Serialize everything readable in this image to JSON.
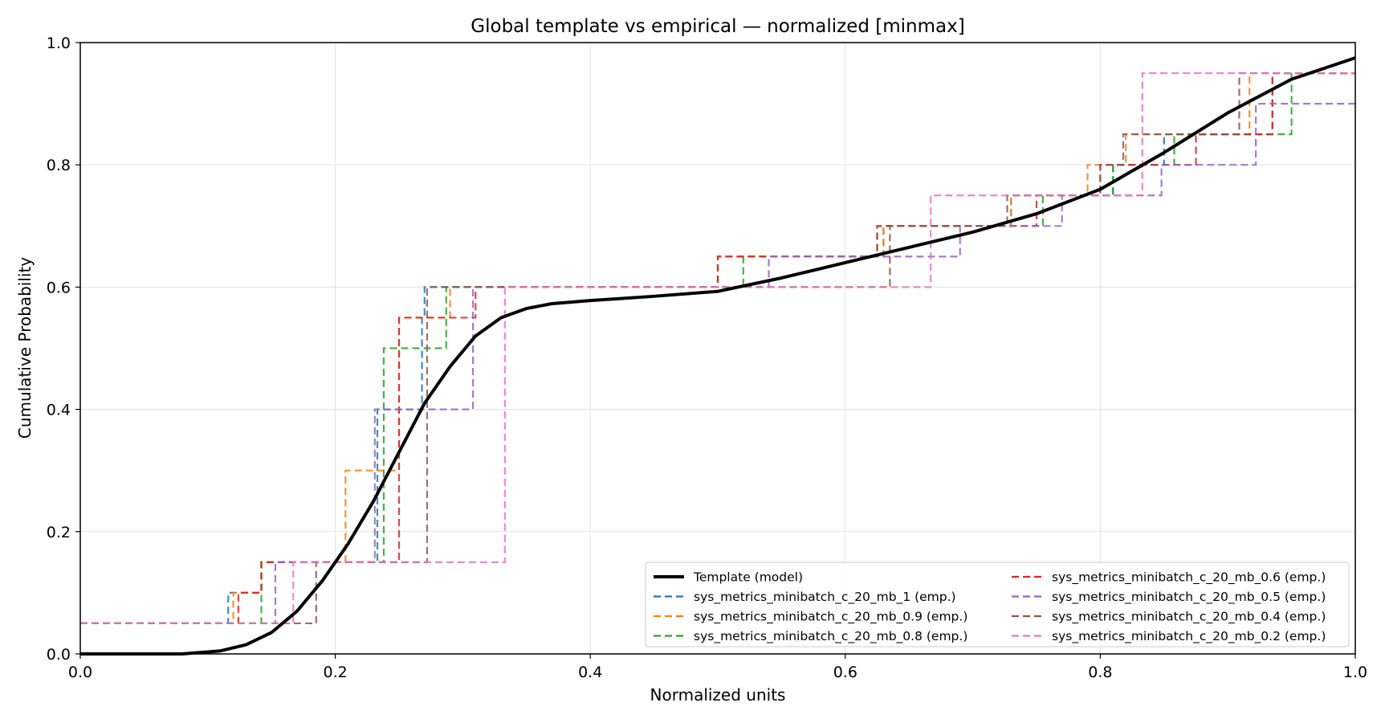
{
  "chart_data": {
    "type": "line",
    "title": "Global template vs empirical — normalized [minmax]",
    "xlabel": "Normalized units",
    "ylabel": "Cumulative Probability",
    "xlim": [
      0,
      1
    ],
    "ylim": [
      0,
      1
    ],
    "xticks": [
      "0.0",
      "0.2",
      "0.4",
      "0.6",
      "0.8",
      "1.0"
    ],
    "yticks": [
      "0.0",
      "0.2",
      "0.4",
      "0.6",
      "0.8",
      "1.0"
    ],
    "grid": true,
    "legend_position": "lower-right",
    "template": {
      "name": "Template (model)",
      "color": "#000000",
      "x": [
        0.0,
        0.08,
        0.11,
        0.13,
        0.15,
        0.17,
        0.19,
        0.21,
        0.23,
        0.25,
        0.27,
        0.29,
        0.31,
        0.33,
        0.35,
        0.37,
        0.4,
        0.45,
        0.5,
        0.55,
        0.6,
        0.65,
        0.7,
        0.75,
        0.8,
        0.85,
        0.9,
        0.95,
        1.0
      ],
      "y": [
        0.0,
        0.0,
        0.005,
        0.015,
        0.035,
        0.07,
        0.12,
        0.18,
        0.25,
        0.33,
        0.41,
        0.47,
        0.52,
        0.55,
        0.565,
        0.573,
        0.578,
        0.585,
        0.593,
        0.615,
        0.64,
        0.665,
        0.69,
        0.72,
        0.76,
        0.82,
        0.885,
        0.94,
        0.975
      ]
    },
    "series": [
      {
        "name": "sys_metrics_minibatch_c_20_mb_1 (emp.)",
        "color": "#1f77b4",
        "x": [
          0.116,
          0.142,
          0.153,
          0.18,
          0.233,
          0.268,
          0.27,
          0.5,
          0.63,
          0.655,
          0.73,
          0.765,
          0.81,
          0.82,
          0.85,
          0.91,
          0.935,
          0.96
        ],
        "y": [
          0.1,
          0.15,
          0.15,
          0.15,
          0.4,
          0.55,
          0.6,
          0.65,
          0.7,
          0.7,
          0.75,
          0.75,
          0.8,
          0.8,
          0.85,
          0.85,
          0.95,
          0.95
        ]
      },
      {
        "name": "sys_metrics_minibatch_c_20_mb_0.9 (emp.)",
        "color": "#ff7f0e",
        "x": [
          0.12,
          0.142,
          0.153,
          0.17,
          0.208,
          0.24,
          0.25,
          0.29,
          0.5,
          0.63,
          0.655,
          0.73,
          0.79,
          0.81,
          0.82,
          0.85,
          0.917,
          0.94
        ],
        "y": [
          0.1,
          0.15,
          0.15,
          0.15,
          0.3,
          0.3,
          0.55,
          0.6,
          0.65,
          0.7,
          0.7,
          0.75,
          0.8,
          0.8,
          0.85,
          0.85,
          0.95,
          0.95
        ]
      },
      {
        "name": "sys_metrics_minibatch_c_20_mb_0.8 (emp.)",
        "color": "#2ca02c",
        "x": [
          0.142,
          0.15,
          0.16,
          0.18,
          0.238,
          0.248,
          0.287,
          0.52,
          0.625,
          0.66,
          0.755,
          0.765,
          0.81,
          0.82,
          0.858,
          0.92,
          0.95,
          0.953
        ],
        "y": [
          0.15,
          0.15,
          0.15,
          0.15,
          0.5,
          0.5,
          0.6,
          0.65,
          0.7,
          0.7,
          0.75,
          0.75,
          0.8,
          0.8,
          0.85,
          0.85,
          0.95,
          0.95
        ]
      },
      {
        "name": "sys_metrics_minibatch_c_20_mb_0.6 (emp.)",
        "color": "#d62728",
        "x": [
          0.124,
          0.142,
          0.153,
          0.186,
          0.25,
          0.25,
          0.31,
          0.5,
          0.625,
          0.66,
          0.75,
          0.76,
          0.8,
          0.82,
          0.875,
          0.92,
          0.935,
          0.94
        ],
        "y": [
          0.1,
          0.15,
          0.15,
          0.15,
          0.3,
          0.55,
          0.6,
          0.65,
          0.7,
          0.7,
          0.75,
          0.75,
          0.8,
          0.8,
          0.85,
          0.85,
          0.95,
          0.95
        ]
      },
      {
        "name": "sys_metrics_minibatch_c_20_mb_0.5 (emp.)",
        "color": "#9467bd",
        "x": [
          0.153,
          0.16,
          0.17,
          0.18,
          0.231,
          0.308,
          0.308,
          0.54,
          0.63,
          0.69,
          0.75,
          0.77,
          0.8,
          0.848,
          0.92,
          0.922,
          0.93,
          1.0
        ],
        "y": [
          0.15,
          0.15,
          0.15,
          0.15,
          0.4,
          0.5,
          0.6,
          0.65,
          0.65,
          0.7,
          0.7,
          0.75,
          0.75,
          0.8,
          0.8,
          0.9,
          0.9,
          0.9
        ]
      },
      {
        "name": "sys_metrics_minibatch_c_20_mb_0.4 (emp.)",
        "color": "#8c564b",
        "x": [
          0.182,
          0.185,
          0.19,
          0.2,
          0.272,
          0.272,
          0.275,
          0.545,
          0.635,
          0.66,
          0.727,
          0.77,
          0.8,
          0.818,
          0.82,
          0.909,
          0.91,
          0.94
        ],
        "y": [
          0.05,
          0.15,
          0.15,
          0.15,
          0.15,
          0.6,
          0.6,
          0.6,
          0.7,
          0.7,
          0.75,
          0.75,
          0.8,
          0.85,
          0.85,
          0.95,
          0.95,
          0.95
        ]
      },
      {
        "name": "sys_metrics_minibatch_c_20_mb_0.2 (emp.)",
        "color": "#e377c2",
        "x": [
          0.167,
          0.17,
          0.18,
          0.2,
          0.333,
          0.333,
          0.34,
          0.5,
          0.6,
          0.667,
          0.7,
          0.75,
          0.8,
          0.833,
          0.84,
          0.9,
          0.92,
          0.94
        ],
        "y": [
          0.15,
          0.15,
          0.15,
          0.15,
          0.15,
          0.6,
          0.6,
          0.6,
          0.6,
          0.75,
          0.75,
          0.75,
          0.75,
          0.95,
          0.95,
          0.95,
          0.95,
          0.95
        ]
      }
    ]
  }
}
